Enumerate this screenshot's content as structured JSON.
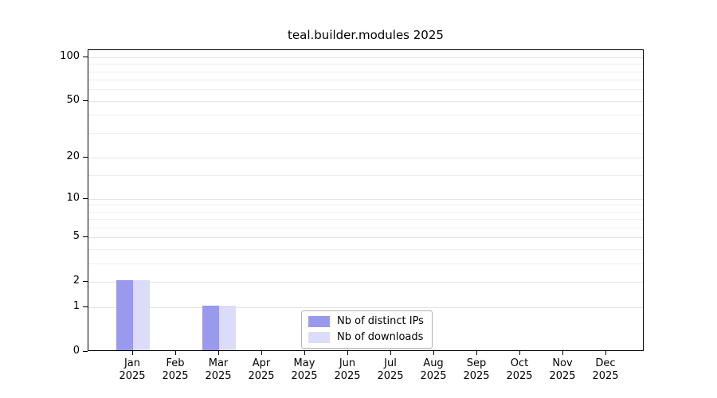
{
  "chart_data": {
    "type": "bar",
    "title": "teal.builder.modules 2025",
    "categories": [
      "Jan",
      "Feb",
      "Mar",
      "Apr",
      "May",
      "Jun",
      "Jul",
      "Aug",
      "Sep",
      "Oct",
      "Nov",
      "Dec"
    ],
    "year_label": "2025",
    "series": [
      {
        "name": "Nb of distinct IPs",
        "color": "#9999ee",
        "values": [
          2,
          0,
          1,
          0,
          0,
          0,
          0,
          0,
          0,
          0,
          0,
          0
        ]
      },
      {
        "name": "Nb of downloads",
        "color": "#dcdcf8",
        "values": [
          2,
          0,
          1,
          0,
          0,
          0,
          0,
          0,
          0,
          0,
          0,
          0
        ]
      }
    ],
    "yscale": "log1p",
    "ylim": [
      0,
      112
    ],
    "yticks": [
      0,
      1,
      2,
      5,
      10,
      20,
      50,
      100
    ],
    "minor_yticks": [
      3,
      4,
      6,
      7,
      8,
      9,
      15,
      30,
      40,
      60,
      70,
      80,
      90
    ],
    "grid": true,
    "legend_position": "bottom-center"
  }
}
